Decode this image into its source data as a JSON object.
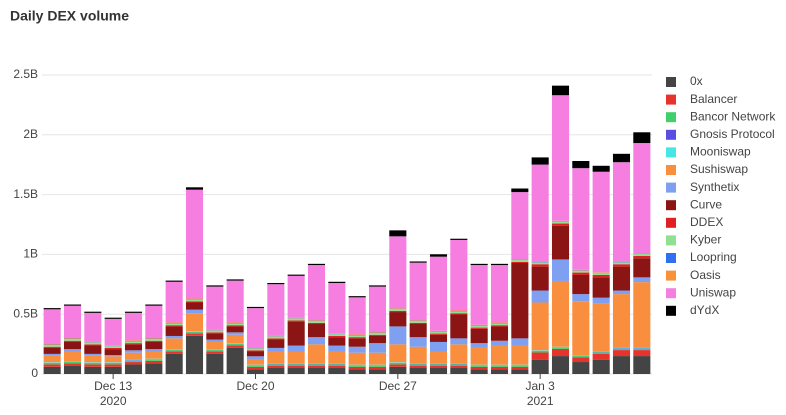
{
  "chart_data": {
    "type": "bar",
    "stacked": true,
    "title": "Daily DEX volume",
    "categories": [
      null,
      null,
      null,
      "Dec 13",
      null,
      null,
      null,
      null,
      null,
      null,
      "Dec 20",
      null,
      null,
      null,
      null,
      null,
      null,
      "Dec 27",
      null,
      null,
      null,
      null,
      null,
      null,
      "Jan 3",
      null,
      null,
      null,
      null,
      null
    ],
    "category_sublabels": [
      null,
      null,
      null,
      "2020",
      null,
      null,
      null,
      null,
      null,
      null,
      null,
      null,
      null,
      null,
      null,
      null,
      null,
      null,
      null,
      null,
      null,
      null,
      null,
      null,
      "2021",
      null,
      null,
      null,
      null,
      null
    ],
    "ylim": [
      0,
      2.5
    ],
    "yticks": [
      0,
      {
        "value": 0.5,
        "label": "0.5B"
      },
      {
        "value": 1,
        "label": "1B"
      },
      {
        "value": 1.5,
        "label": "1.5B"
      },
      {
        "value": 2,
        "label": "2B"
      },
      {
        "value": 2.5,
        "label": "2.5B"
      }
    ],
    "grid": true,
    "legend": "right",
    "series": [
      {
        "name": "0x",
        "color": "#444444",
        "values": [
          0.06,
          0.07,
          0.06,
          0.06,
          0.08,
          0.09,
          0.17,
          0.32,
          0.17,
          0.22,
          0.04,
          0.05,
          0.05,
          0.05,
          0.05,
          0.04,
          0.04,
          0.06,
          0.05,
          0.05,
          0.05,
          0.04,
          0.04,
          0.04,
          0.12,
          0.15,
          0.1,
          0.12,
          0.15,
          0.15
        ]
      },
      {
        "name": "Balancer",
        "color": "#e8322c",
        "values": [
          0.02,
          0.02,
          0.02,
          0.02,
          0.02,
          0.02,
          0.02,
          0.02,
          0.02,
          0.02,
          0.02,
          0.02,
          0.02,
          0.02,
          0.02,
          0.02,
          0.02,
          0.02,
          0.02,
          0.02,
          0.02,
          0.02,
          0.02,
          0.02,
          0.06,
          0.06,
          0.04,
          0.05,
          0.05,
          0.05
        ]
      },
      {
        "name": "Bancor Network",
        "color": "#3fd06c",
        "values": [
          0.01,
          0.01,
          0.01,
          0.01,
          0.01,
          0.01,
          0.01,
          0.01,
          0.01,
          0.01,
          0.01,
          0.01,
          0.01,
          0.01,
          0.01,
          0.01,
          0.01,
          0.01,
          0.01,
          0.01,
          0.01,
          0.01,
          0.01,
          0.01,
          0.01,
          0.01,
          0.01,
          0.01,
          0.01,
          0.01
        ]
      },
      {
        "name": "Gnosis Protocol",
        "color": "#5a4fe0",
        "values": [
          0.003,
          0.003,
          0.003,
          0.003,
          0.003,
          0.003,
          0.003,
          0.003,
          0.003,
          0.003,
          0.003,
          0.003,
          0.003,
          0.003,
          0.003,
          0.003,
          0.003,
          0.003,
          0.003,
          0.003,
          0.003,
          0.003,
          0.003,
          0.003,
          0.003,
          0.003,
          0.003,
          0.003,
          0.003,
          0.003
        ]
      },
      {
        "name": "Mooniswap",
        "color": "#47e6e6",
        "values": [
          0.005,
          0.005,
          0.005,
          0.005,
          0.005,
          0.005,
          0.005,
          0.005,
          0.005,
          0.005,
          0.005,
          0.005,
          0.005,
          0.005,
          0.005,
          0.005,
          0.005,
          0.005,
          0.005,
          0.005,
          0.005,
          0.005,
          0.005,
          0.005,
          0.005,
          0.005,
          0.005,
          0.005,
          0.005,
          0.005
        ]
      },
      {
        "name": "Sushiswap",
        "color": "#f98e3f",
        "values": [
          0.06,
          0.08,
          0.06,
          0.05,
          0.06,
          0.06,
          0.09,
          0.15,
          0.06,
          0.07,
          0.04,
          0.1,
          0.1,
          0.16,
          0.1,
          0.1,
          0.1,
          0.15,
          0.14,
          0.1,
          0.16,
          0.14,
          0.16,
          0.16,
          0.4,
          0.55,
          0.45,
          0.4,
          0.45,
          0.55
        ]
      },
      {
        "name": "Synthetix",
        "color": "#7f9ff0",
        "values": [
          0.01,
          0.02,
          0.01,
          0.01,
          0.02,
          0.02,
          0.02,
          0.03,
          0.02,
          0.02,
          0.03,
          0.03,
          0.05,
          0.06,
          0.05,
          0.05,
          0.08,
          0.15,
          0.08,
          0.08,
          0.05,
          0.04,
          0.04,
          0.06,
          0.1,
          0.18,
          0.06,
          0.05,
          0.03,
          0.04
        ]
      },
      {
        "name": "Curve",
        "color": "#8b1414",
        "values": [
          0.05,
          0.06,
          0.07,
          0.05,
          0.05,
          0.06,
          0.08,
          0.06,
          0.05,
          0.05,
          0.04,
          0.07,
          0.2,
          0.11,
          0.07,
          0.07,
          0.06,
          0.12,
          0.11,
          0.06,
          0.2,
          0.12,
          0.12,
          0.63,
          0.2,
          0.28,
          0.16,
          0.17,
          0.2,
          0.16
        ]
      },
      {
        "name": "DDEX",
        "color": "#e02020",
        "values": [
          0.01,
          0.01,
          0.01,
          0.01,
          0.01,
          0.01,
          0.01,
          0.01,
          0.01,
          0.01,
          0.01,
          0.01,
          0.01,
          0.01,
          0.01,
          0.01,
          0.01,
          0.01,
          0.01,
          0.01,
          0.01,
          0.01,
          0.01,
          0.01,
          0.02,
          0.02,
          0.02,
          0.02,
          0.02,
          0.02
        ]
      },
      {
        "name": "Kyber",
        "color": "#8fe08f",
        "values": [
          0.015,
          0.015,
          0.015,
          0.015,
          0.015,
          0.015,
          0.015,
          0.015,
          0.015,
          0.015,
          0.015,
          0.015,
          0.015,
          0.015,
          0.015,
          0.015,
          0.015,
          0.015,
          0.015,
          0.015,
          0.015,
          0.015,
          0.015,
          0.015,
          0.015,
          0.015,
          0.015,
          0.015,
          0.015,
          0.015
        ]
      },
      {
        "name": "Loopring",
        "color": "#2f6ff0",
        "values": [
          0.003,
          0.003,
          0.003,
          0.003,
          0.003,
          0.003,
          0.003,
          0.003,
          0.003,
          0.003,
          0.003,
          0.003,
          0.003,
          0.003,
          0.003,
          0.003,
          0.003,
          0.003,
          0.003,
          0.003,
          0.003,
          0.003,
          0.003,
          0.003,
          0.003,
          0.003,
          0.003,
          0.003,
          0.003,
          0.003
        ]
      },
      {
        "name": "Oasis",
        "color": "#f7923a",
        "values": [
          0.005,
          0.005,
          0.005,
          0.005,
          0.005,
          0.005,
          0.005,
          0.005,
          0.005,
          0.005,
          0.005,
          0.005,
          0.005,
          0.005,
          0.005,
          0.005,
          0.005,
          0.005,
          0.005,
          0.005,
          0.005,
          0.005,
          0.005,
          0.005,
          0.005,
          0.005,
          0.005,
          0.005,
          0.005,
          0.005
        ]
      },
      {
        "name": "Uniswap",
        "color": "#f57ee0",
        "values": [
          0.29,
          0.27,
          0.24,
          0.22,
          0.23,
          0.27,
          0.34,
          0.91,
          0.36,
          0.35,
          0.33,
          0.43,
          0.35,
          0.46,
          0.42,
          0.31,
          0.38,
          0.6,
          0.48,
          0.62,
          0.59,
          0.5,
          0.48,
          0.56,
          0.81,
          1.05,
          0.85,
          0.84,
          0.83,
          0.92
        ]
      },
      {
        "name": "dYdX",
        "color": "#000000",
        "values": [
          0.01,
          0.01,
          0.01,
          0.01,
          0.01,
          0.01,
          0.01,
          0.02,
          0.01,
          0.01,
          0.01,
          0.01,
          0.01,
          0.01,
          0.01,
          0.01,
          0.01,
          0.05,
          0.01,
          0.02,
          0.01,
          0.01,
          0.01,
          0.03,
          0.06,
          0.08,
          0.06,
          0.05,
          0.07,
          0.09
        ]
      }
    ]
  }
}
